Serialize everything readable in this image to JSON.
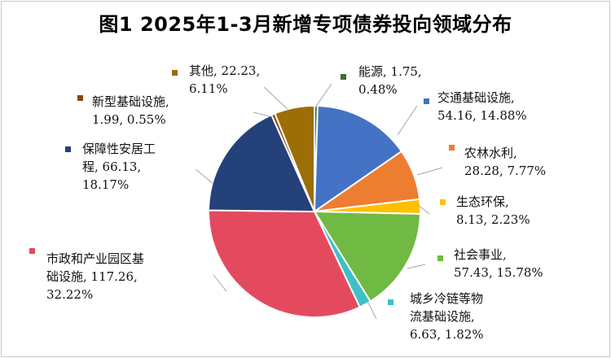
{
  "chart_data": {
    "type": "pie",
    "title": "图1  2025年1-3月新增专项债券投向领域分布",
    "slices": [
      {
        "name": "能源",
        "value": 1.75,
        "percent": 0.48,
        "color": "#3c6e2e",
        "label_lines": [
          "能源, 1.75,",
          "0.48%"
        ]
      },
      {
        "name": "交通基础设施",
        "value": 54.16,
        "percent": 14.88,
        "color": "#4472c4",
        "label_lines": [
          "交通基础设施,",
          "54.16, 14.88%"
        ]
      },
      {
        "name": "农林水利",
        "value": 28.28,
        "percent": 7.77,
        "color": "#ed7d31",
        "label_lines": [
          "农林水利,",
          "28.28, 7.77%"
        ]
      },
      {
        "name": "生态环保",
        "value": 8.13,
        "percent": 2.23,
        "color": "#ffc000",
        "label_lines": [
          "生态环保,",
          "8.13, 2.23%"
        ]
      },
      {
        "name": "社会事业",
        "value": 57.43,
        "percent": 15.78,
        "color": "#70b943",
        "label_lines": [
          "社会事业,",
          "57.43, 15.78%"
        ]
      },
      {
        "name": "城乡冷链等物流基础设施",
        "value": 6.63,
        "percent": 1.82,
        "color": "#3ec1c4",
        "label_lines": [
          "城乡冷链等物",
          "流基础设施,",
          "6.63, 1.82%"
        ]
      },
      {
        "name": "市政和产业园区基础设施",
        "value": 117.26,
        "percent": 32.22,
        "color": "#e44a5e",
        "label_lines": [
          "市政和产业园区基",
          "础设施, 117.26,",
          "32.22%"
        ]
      },
      {
        "name": "保障性安居工程",
        "value": 66.13,
        "percent": 18.17,
        "color": "#25417a",
        "label_lines": [
          "保障性安居工",
          "程, 66.13,",
          "18.17%"
        ]
      },
      {
        "name": "新型基础设施",
        "value": 1.99,
        "percent": 0.55,
        "color": "#8b4513",
        "label_lines": [
          "新型基础设施,",
          "1.99, 0.55%"
        ]
      },
      {
        "name": "其他",
        "value": 22.23,
        "percent": 6.11,
        "color": "#9c6e06",
        "label_lines": [
          "其他, 22.23,",
          "6.11%"
        ]
      }
    ]
  }
}
